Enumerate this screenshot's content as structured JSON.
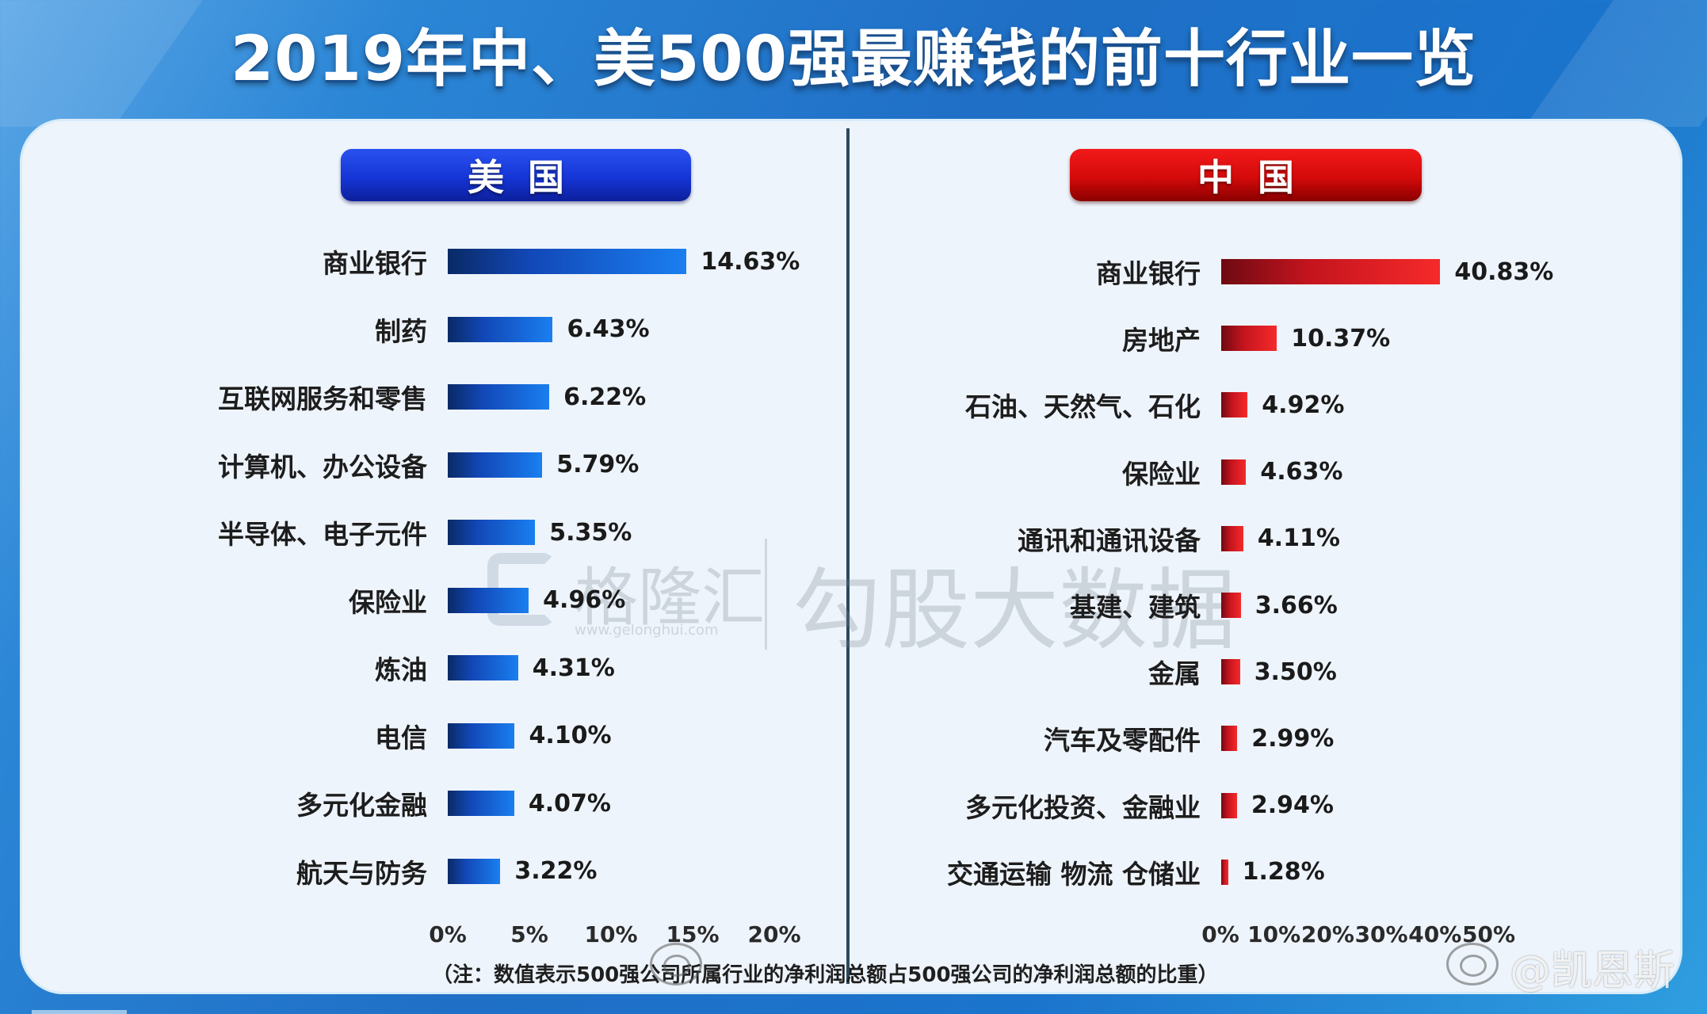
{
  "title": "2019年中、美500强最赚钱的前十行业一览",
  "colors": {
    "background": "#1f6fc6",
    "panel": "#eef4fb",
    "us_accent": "#1535d6",
    "cn_accent": "#d40a0a",
    "us_bar": "#1a7ff0",
    "cn_bar": "#f52a2a"
  },
  "us": {
    "header": "美国",
    "ticks": [
      "0%",
      "5%",
      "10%",
      "15%",
      "20%"
    ],
    "rows": [
      {
        "label": "商业银行",
        "value": 14.63,
        "display": "14.63%"
      },
      {
        "label": "制药",
        "value": 6.43,
        "display": "6.43%"
      },
      {
        "label": "互联网服务和零售",
        "value": 6.22,
        "display": "6.22%"
      },
      {
        "label": "计算机、办公设备",
        "value": 5.79,
        "display": "5.79%"
      },
      {
        "label": "半导体、电子元件",
        "value": 5.35,
        "display": "5.35%"
      },
      {
        "label": "保险业",
        "value": 4.96,
        "display": "4.96%"
      },
      {
        "label": "炼油",
        "value": 4.31,
        "display": "4.31%"
      },
      {
        "label": "电信",
        "value": 4.1,
        "display": "4.10%"
      },
      {
        "label": "多元化金融",
        "value": 4.07,
        "display": "4.07%"
      },
      {
        "label": "航天与防务",
        "value": 3.22,
        "display": "3.22%"
      }
    ]
  },
  "cn": {
    "header": "中国",
    "ticks": [
      "0%",
      "10%",
      "20%",
      "30%",
      "40%",
      "50%"
    ],
    "rows": [
      {
        "label": "商业银行",
        "value": 40.83,
        "display": "40.83%"
      },
      {
        "label": "房地产",
        "value": 10.37,
        "display": "10.37%"
      },
      {
        "label": "石油、天然气、石化",
        "value": 4.92,
        "display": "4.92%"
      },
      {
        "label": "保险业",
        "value": 4.63,
        "display": "4.63%"
      },
      {
        "label": "通讯和通讯设备",
        "value": 4.11,
        "display": "4.11%"
      },
      {
        "label": "基建、建筑",
        "value": 3.66,
        "display": "3.66%"
      },
      {
        "label": "金属",
        "value": 3.5,
        "display": "3.50%"
      },
      {
        "label": "汽车及零配件",
        "value": 2.99,
        "display": "2.99%"
      },
      {
        "label": "多元化投资、金融业",
        "value": 2.94,
        "display": "2.94%"
      },
      {
        "label": "交通运输 物流 仓储业",
        "value": 1.28,
        "display": "1.28%"
      }
    ]
  },
  "footnote": "（注：数值表示500强公司所属行业的净利润总额占500强公司的净利润总额的比重）",
  "watermarks": {
    "brand": "格隆汇",
    "brand_url": "www.gelonghui.com",
    "data": "勾股大数据",
    "weibo_user": "@凯恩斯"
  },
  "chart_data": [
    {
      "type": "bar",
      "orientation": "horizontal",
      "title": "美国",
      "categories": [
        "商业银行",
        "制药",
        "互联网服务和零售",
        "计算机、办公设备",
        "半导体、电子元件",
        "保险业",
        "炼油",
        "电信",
        "多元化金融",
        "航天与防务"
      ],
      "values": [
        14.63,
        6.43,
        6.22,
        5.79,
        5.35,
        4.96,
        4.31,
        4.1,
        4.07,
        3.22
      ],
      "xlabel": "",
      "ylabel": "",
      "xlim": [
        0,
        20
      ],
      "xticks": [
        "0%",
        "5%",
        "10%",
        "15%",
        "20%"
      ],
      "unit": "%",
      "grid": false,
      "legend": null
    },
    {
      "type": "bar",
      "orientation": "horizontal",
      "title": "中国",
      "categories": [
        "商业银行",
        "房地产",
        "石油、天然气、石化",
        "保险业",
        "通讯和通讯设备",
        "基建、建筑",
        "金属",
        "汽车及零配件",
        "多元化投资、金融业",
        "交通运输 物流 仓储业"
      ],
      "values": [
        40.83,
        10.37,
        4.92,
        4.63,
        4.11,
        3.66,
        3.5,
        2.99,
        2.94,
        1.28
      ],
      "xlabel": "",
      "ylabel": "",
      "xlim": [
        0,
        50
      ],
      "xticks": [
        "0%",
        "10%",
        "20%",
        "30%",
        "40%",
        "50%"
      ],
      "unit": "%",
      "grid": false,
      "legend": null
    }
  ]
}
